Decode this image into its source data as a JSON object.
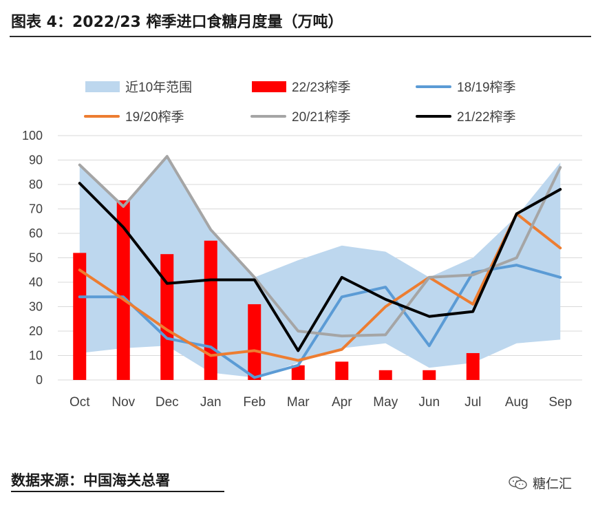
{
  "title": "图表 4：2022/23 榨季进口食糖月度量（万吨）",
  "source": "数据来源：中国海关总署",
  "watermark": "糖仁汇",
  "colors": {
    "range": "#bdd7ee",
    "bar": "#ff0000",
    "s1819": "#5b9bd5",
    "s1920": "#ed7d31",
    "s2021": "#a5a5a5",
    "s2122": "#000000",
    "grid": "#d9d9d9"
  },
  "chart_data": {
    "type": "bar",
    "categories": [
      "Oct",
      "Nov",
      "Dec",
      "Jan",
      "Feb",
      "Mar",
      "Apr",
      "May",
      "Jun",
      "Jul",
      "Aug",
      "Sep"
    ],
    "ylim": [
      0,
      100
    ],
    "yticks": [
      0,
      10,
      20,
      30,
      40,
      50,
      60,
      70,
      80,
      90,
      100
    ],
    "grid": true,
    "legend_position": "top",
    "range": {
      "name": "近10年范围",
      "min": [
        11,
        13,
        14,
        3,
        1,
        7,
        13,
        15,
        5,
        7,
        15,
        16.5
      ],
      "max": [
        88,
        71,
        92,
        62,
        42,
        49,
        55,
        52.5,
        42,
        50,
        67,
        89
      ]
    },
    "series": [
      {
        "name": "22/23榨季",
        "kind": "bar",
        "color": "#ff0000",
        "values": [
          52,
          73.5,
          51.5,
          57,
          31,
          6,
          7.5,
          4,
          4,
          11,
          null,
          null
        ]
      },
      {
        "name": "18/19榨季",
        "kind": "line",
        "color": "#5b9bd5",
        "values": [
          34,
          34,
          17,
          13.5,
          1,
          6,
          34,
          38,
          14,
          44,
          47,
          42
        ]
      },
      {
        "name": "19/20榨季",
        "kind": "line",
        "color": "#ed7d31",
        "values": [
          45,
          33,
          20.5,
          10,
          12,
          8,
          12.5,
          30,
          42,
          31,
          68,
          54
        ]
      },
      {
        "name": "20/21榨季",
        "kind": "line",
        "color": "#a5a5a5",
        "values": [
          88,
          71,
          91.5,
          61.5,
          42,
          20,
          18,
          18.5,
          42,
          43,
          50,
          87
        ]
      },
      {
        "name": "21/22榨季",
        "kind": "line",
        "color": "#000000",
        "values": [
          80.5,
          62.5,
          39.5,
          41,
          41,
          12,
          42,
          33,
          26,
          28,
          68,
          78
        ]
      }
    ]
  }
}
